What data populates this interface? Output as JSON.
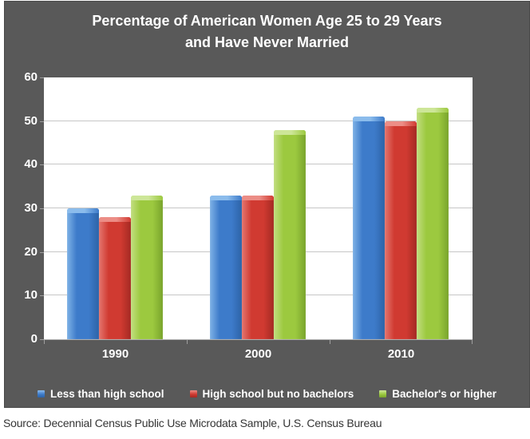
{
  "title": {
    "lines": [
      "Percentage of American Women Age 25 to 29 Years",
      "and Have Never Married"
    ]
  },
  "source_note": "Source: Decennial Census Public Use Microdata Sample, U.S. Census Bureau",
  "colors": {
    "panel_background": "#595959",
    "panel_border": "#494949",
    "plot_background": "#ffffff",
    "gridline": "#c6c6c6",
    "axis_text": "#ffffff",
    "source_text": "#353535"
  },
  "chart_data": {
    "type": "bar",
    "title": "Percentage of American Women Age 25 to 29 Years and Have Never Married",
    "categories": [
      "1990",
      "2000",
      "2010"
    ],
    "series": [
      {
        "name": "Less than high school",
        "values": [
          30,
          33,
          51
        ],
        "color": "#3d7bca",
        "light": "#7fb2e6",
        "dark": "#2d63a7",
        "cap": "#8bbcec"
      },
      {
        "name": "High school but no bachelors",
        "values": [
          28,
          33,
          50
        ],
        "color": "#d03a31",
        "light": "#e4766f",
        "dark": "#a42a23",
        "cap": "#ec8d86"
      },
      {
        "name": "Bachelor's or higher",
        "values": [
          33,
          48,
          53
        ],
        "color": "#9cc93f",
        "light": "#c2de81",
        "dark": "#79a42c",
        "cap": "#cde698"
      }
    ],
    "xlabel": "",
    "ylabel": "",
    "ylim": [
      0,
      60
    ],
    "yticks": [
      0,
      10,
      20,
      30,
      40,
      50,
      60
    ],
    "grid": true,
    "legend_position": "bottom"
  }
}
